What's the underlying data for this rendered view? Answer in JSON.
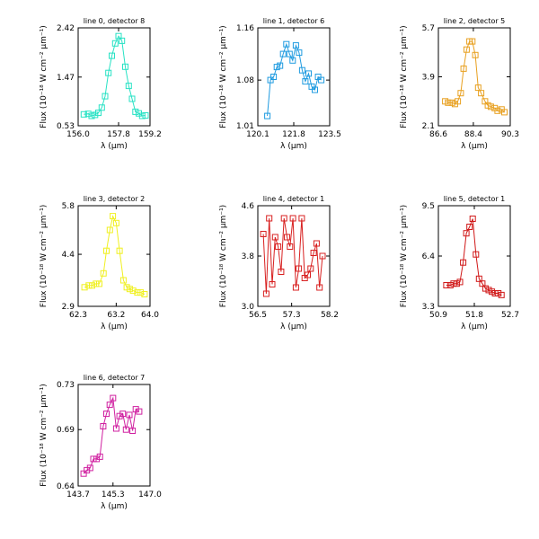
{
  "chart_data": [
    {
      "type": "line",
      "title": "line 0, detector 8",
      "xlabel": "λ (μm)",
      "ylabel": "Flux (10⁻¹⁸ W cm⁻² μm⁻¹)",
      "xlim": [
        156.0,
        159.2
      ],
      "ylim": [
        0.53,
        2.42
      ],
      "xticks": [
        "156.0",
        "157.8",
        "159.2"
      ],
      "yticks": [
        "0.53",
        "1.47",
        "2.42"
      ],
      "color": "#27e2c4",
      "x": [
        156.25,
        156.45,
        156.6,
        156.75,
        156.9,
        157.05,
        157.2,
        157.35,
        157.5,
        157.65,
        157.8,
        157.95,
        158.1,
        158.25,
        158.4,
        158.55,
        158.7,
        158.85,
        159.0
      ],
      "y": [
        0.75,
        0.76,
        0.72,
        0.74,
        0.78,
        0.88,
        1.1,
        1.55,
        1.88,
        2.12,
        2.26,
        2.17,
        1.67,
        1.3,
        1.05,
        0.8,
        0.77,
        0.72,
        0.73
      ]
    },
    {
      "type": "line",
      "title": "line 1, detector 6",
      "xlabel": "λ (μm)",
      "ylabel": "Flux (10⁻¹⁸ W cm⁻² μm⁻¹)",
      "xlim": [
        120.1,
        123.5
      ],
      "ylim": [
        1.01,
        1.16
      ],
      "xticks": [
        "120.1",
        "121.8",
        "123.5"
      ],
      "yticks": [
        "1.01",
        "1.08",
        "1.16"
      ],
      "color": "#1f9be0",
      "x": [
        120.55,
        120.7,
        120.85,
        121.0,
        121.15,
        121.3,
        121.45,
        121.6,
        121.75,
        121.9,
        122.05,
        122.2,
        122.35,
        122.5,
        122.65,
        122.8,
        122.95,
        123.1
      ],
      "y": [
        1.025,
        1.08,
        1.085,
        1.1,
        1.102,
        1.12,
        1.135,
        1.12,
        1.11,
        1.133,
        1.122,
        1.095,
        1.078,
        1.09,
        1.07,
        1.065,
        1.085,
        1.08
      ]
    },
    {
      "type": "line",
      "title": "line 2, detector 5",
      "xlabel": "λ (μm)",
      "ylabel": "Flux (10⁻¹⁸ W cm⁻² μm⁻¹)",
      "xlim": [
        86.6,
        90.3
      ],
      "ylim": [
        2.1,
        5.7
      ],
      "xticks": [
        "86.6",
        "88.4",
        "90.3"
      ],
      "yticks": [
        "2.1",
        "3.9",
        "5.7"
      ],
      "color": "#e8a020",
      "x": [
        86.95,
        87.1,
        87.3,
        87.45,
        87.6,
        87.75,
        87.9,
        88.05,
        88.2,
        88.35,
        88.5,
        88.65,
        88.8,
        89.0,
        89.15,
        89.3,
        89.5,
        89.65,
        89.85,
        90.0
      ],
      "y": [
        3.0,
        2.95,
        2.95,
        2.9,
        3.0,
        3.3,
        4.2,
        4.9,
        5.2,
        5.2,
        4.7,
        3.5,
        3.3,
        3.0,
        2.85,
        2.8,
        2.75,
        2.65,
        2.7,
        2.6
      ]
    },
    {
      "type": "line",
      "title": "line 3, detector 2",
      "xlabel": "λ (μm)",
      "ylabel": "Flux (10⁻¹⁸ W cm⁻² μm⁻¹)",
      "xlim": [
        62.3,
        64.0
      ],
      "ylim": [
        2.9,
        5.8
      ],
      "xticks": [
        "62.3",
        "63.2",
        "64.0"
      ],
      "yticks": [
        "2.9",
        "4.4",
        "5.8"
      ],
      "color": "#f0f020",
      "x": [
        62.45,
        62.55,
        62.63,
        62.72,
        62.8,
        62.9,
        62.97,
        63.05,
        63.12,
        63.2,
        63.28,
        63.37,
        63.45,
        63.52,
        63.6,
        63.7,
        63.78,
        63.87
      ],
      "y": [
        3.45,
        3.5,
        3.5,
        3.55,
        3.55,
        3.85,
        4.5,
        5.1,
        5.5,
        5.3,
        4.5,
        3.65,
        3.45,
        3.4,
        3.35,
        3.3,
        3.3,
        3.25
      ]
    },
    {
      "type": "line",
      "title": "line 4, detector 1",
      "xlabel": "λ (μm)",
      "ylabel": "Flux (10⁻¹⁸ W cm⁻² μm⁻¹)",
      "xlim": [
        56.5,
        58.2
      ],
      "ylim": [
        3.0,
        4.6
      ],
      "xticks": [
        "56.5",
        "57.3",
        "58.2"
      ],
      "yticks": [
        "3.0",
        "3.8",
        "4.6"
      ],
      "color": "#d82020",
      "x": [
        56.63,
        56.7,
        56.77,
        56.84,
        56.91,
        56.98,
        57.05,
        57.12,
        57.19,
        57.26,
        57.33,
        57.4,
        57.47,
        57.54,
        57.61,
        57.68,
        57.75,
        57.82,
        57.89,
        57.96,
        58.03
      ],
      "y": [
        4.15,
        3.2,
        4.4,
        3.35,
        4.1,
        3.95,
        3.55,
        4.4,
        4.1,
        3.95,
        4.4,
        3.3,
        3.6,
        4.4,
        3.45,
        3.5,
        3.6,
        3.85,
        4.0,
        3.3,
        3.8
      ]
    },
    {
      "type": "line",
      "title": "line 5, detector 1",
      "xlabel": "λ (μm)",
      "ylabel": "Flux (10⁻¹⁸ W cm⁻² μm⁻¹)",
      "xlim": [
        50.9,
        52.7
      ],
      "ylim": [
        3.3,
        9.5
      ],
      "xticks": [
        "50.9",
        "51.8",
        "52.7"
      ],
      "yticks": [
        "3.3",
        "6.4",
        "9.5"
      ],
      "color": "#d01818",
      "x": [
        51.1,
        51.2,
        51.28,
        51.36,
        51.44,
        51.52,
        51.6,
        51.68,
        51.76,
        51.84,
        51.92,
        52.0,
        52.08,
        52.16,
        52.24,
        52.32,
        52.4,
        52.48
      ],
      "y": [
        4.6,
        4.6,
        4.7,
        4.7,
        4.8,
        6.0,
        7.8,
        8.2,
        8.7,
        6.5,
        5.0,
        4.7,
        4.4,
        4.3,
        4.2,
        4.1,
        4.1,
        4.0
      ]
    },
    {
      "type": "line",
      "title": "line 6, detector 7",
      "xlabel": "λ (μm)",
      "ylabel": "Flux (10⁻¹⁸ W cm⁻² μm⁻¹)",
      "xlim": [
        143.7,
        147.0
      ],
      "ylim": [
        0.64,
        0.73
      ],
      "xticks": [
        "143.7",
        "145.3",
        "147.0"
      ],
      "yticks": [
        "0.64",
        "0.69",
        "0.73"
      ],
      "color": "#d020a0",
      "x": [
        143.95,
        144.1,
        144.25,
        144.4,
        144.55,
        144.7,
        144.85,
        145.0,
        145.15,
        145.3,
        145.45,
        145.6,
        145.75,
        145.9,
        146.05,
        146.2,
        146.35,
        146.5
      ],
      "y": [
        0.651,
        0.654,
        0.656,
        0.664,
        0.664,
        0.666,
        0.693,
        0.704,
        0.712,
        0.718,
        0.691,
        0.702,
        0.704,
        0.69,
        0.703,
        0.689,
        0.708,
        0.706
      ]
    }
  ]
}
